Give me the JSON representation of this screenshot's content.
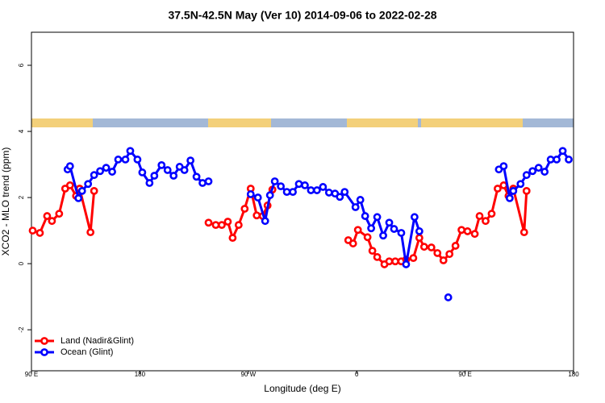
{
  "chart_data": {
    "type": "line",
    "title": "37.5N-42.5N May (Ver 10)   2014-09-06 to 2022-02-28",
    "x_label": "Longitude (deg E)",
    "y_label": "XCO2 - MLO trend (ppm)",
    "xlim": [
      90,
      540
    ],
    "xticks": [
      {
        "value": 90,
        "label": "90 E"
      },
      {
        "value": 180,
        "label": "180"
      },
      {
        "value": 270,
        "label": "90 W"
      },
      {
        "value": 360,
        "label": "0"
      },
      {
        "value": 450,
        "label": "90 E"
      },
      {
        "value": 540,
        "label": "180"
      }
    ],
    "ylim": [
      -3.24,
      7.0
    ],
    "yticks": [
      -2,
      0,
      2,
      4,
      6
    ],
    "legend": "bottom-left",
    "series": [
      {
        "name": "Land (Nadir&Glint)",
        "color": "#ff0000",
        "x": [
          91,
          97,
          103,
          107,
          113,
          118,
          122,
          127,
          130,
          139,
          142,
          null,
          237,
          243,
          248,
          253,
          257,
          262,
          267,
          272,
          277,
          282,
          286,
          290,
          null,
          353,
          357,
          361,
          369,
          373,
          377,
          383,
          387,
          392,
          397,
          401,
          407,
          412,
          416,
          422,
          427,
          432,
          437,
          442,
          447,
          452,
          458,
          462,
          467,
          472,
          477,
          482,
          486,
          490,
          499,
          501
        ],
        "values": [
          1.0,
          0.93,
          1.44,
          1.29,
          1.51,
          2.27,
          2.37,
          2.05,
          2.27,
          0.95,
          2.2,
          null,
          1.24,
          1.17,
          1.17,
          1.27,
          0.78,
          1.17,
          1.66,
          2.27,
          1.46,
          1.44,
          1.76,
          2.24,
          null,
          0.71,
          0.61,
          1.02,
          0.8,
          0.39,
          0.2,
          -0.02,
          0.07,
          0.07,
          0.07,
          0.12,
          0.17,
          0.78,
          0.51,
          0.49,
          0.32,
          0.1,
          0.29,
          0.54,
          1.02,
          0.98,
          0.9,
          1.44,
          1.29,
          1.51,
          2.27,
          2.37,
          2.05,
          2.27,
          0.95,
          2.2
        ]
      },
      {
        "name": "Ocean (Glint)",
        "color": "#0000ff",
        "x": [
          120,
          122,
          129,
          132,
          137,
          142,
          147,
          152,
          157,
          162,
          168,
          172,
          178,
          182,
          188,
          192,
          198,
          203,
          208,
          213,
          217,
          222,
          227,
          232,
          237,
          null,
          272,
          278,
          284,
          288,
          292,
          297,
          302,
          307,
          312,
          317,
          322,
          327,
          332,
          337,
          342,
          346,
          350,
          359,
          363,
          367,
          372,
          377,
          382,
          387,
          391,
          397,
          401,
          408,
          412,
          null,
          436,
          null,
          478,
          482,
          487,
          490,
          496,
          501,
          506,
          511,
          516,
          521,
          526,
          531,
          536
        ],
        "values": [
          2.85,
          2.95,
          1.98,
          2.2,
          2.41,
          2.68,
          2.8,
          2.9,
          2.78,
          3.15,
          3.15,
          3.41,
          3.15,
          2.76,
          2.44,
          2.66,
          2.98,
          2.83,
          2.66,
          2.93,
          2.83,
          3.12,
          2.63,
          2.44,
          2.49,
          null,
          2.1,
          2.0,
          1.29,
          2.07,
          2.49,
          2.34,
          2.17,
          2.17,
          2.41,
          2.37,
          2.22,
          2.22,
          2.32,
          2.15,
          2.12,
          2.02,
          2.17,
          1.71,
          1.93,
          1.44,
          1.07,
          1.41,
          0.85,
          1.24,
          1.05,
          0.93,
          -0.02,
          1.41,
          0.98,
          null,
          -1.02,
          null,
          2.85,
          2.95,
          1.98,
          2.2,
          2.41,
          2.68,
          2.8,
          2.9,
          2.78,
          3.15,
          3.15,
          3.41,
          3.15
        ]
      }
    ]
  }
}
